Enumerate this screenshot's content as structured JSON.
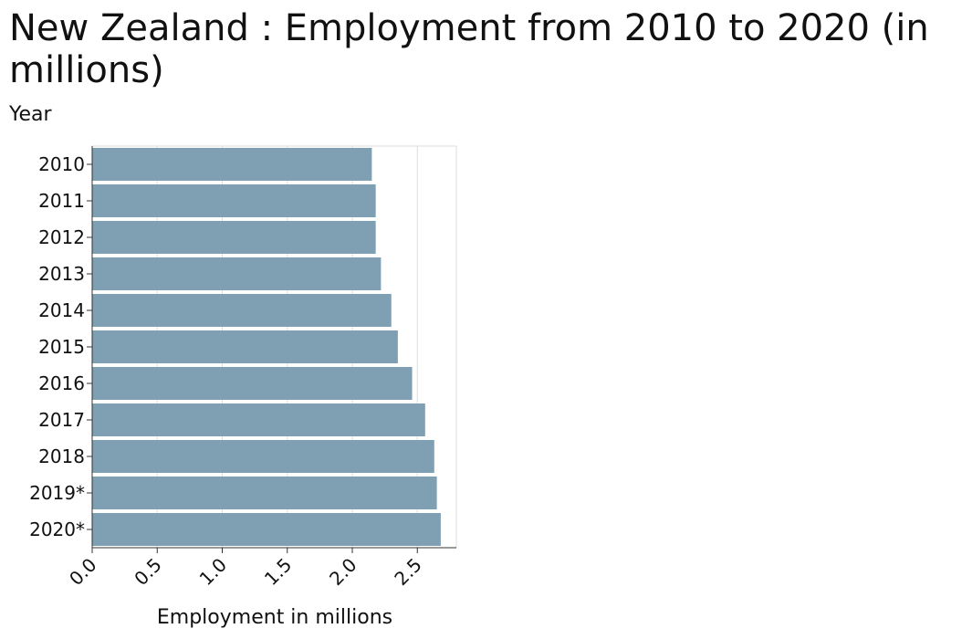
{
  "chart_data": {
    "type": "bar",
    "orientation": "horizontal",
    "title": "New Zealand : Employment from 2010 to 2020 (in millions)",
    "xlabel": "Employment in millions",
    "ylabel": "Year",
    "categories": [
      "2010",
      "2011",
      "2012",
      "2013",
      "2014",
      "2015",
      "2016",
      "2017",
      "2018",
      "2019*",
      "2020*"
    ],
    "values": [
      2.15,
      2.18,
      2.18,
      2.22,
      2.3,
      2.35,
      2.46,
      2.56,
      2.63,
      2.65,
      2.68
    ],
    "xlim": [
      0,
      2.8
    ],
    "xticks": [
      "0.0",
      "0.5",
      "1.0",
      "1.5",
      "2.0",
      "2.5"
    ],
    "grid": true,
    "bar_color": "#7f9fb3"
  }
}
